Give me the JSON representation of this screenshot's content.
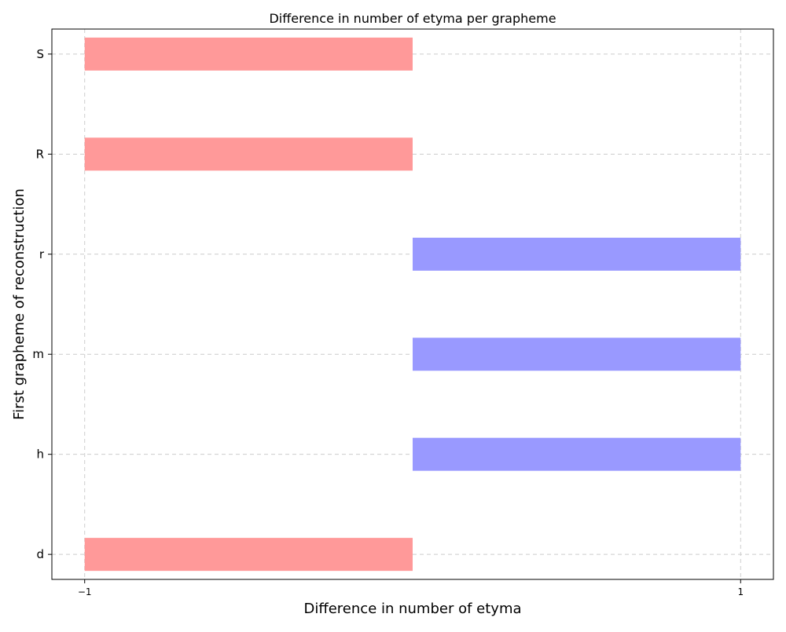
{
  "chart_data": {
    "type": "bar",
    "orientation": "horizontal",
    "title": "Difference in number of etyma per grapheme",
    "xlabel": "Difference in number of etyma",
    "ylabel": "First grapheme of reconstruction",
    "categories": [
      "d",
      "h",
      "m",
      "r",
      "R",
      "S"
    ],
    "values": [
      -1,
      1,
      1,
      1,
      -1,
      -1
    ],
    "bar_colors": [
      "#ff9999",
      "#9999ff",
      "#9999ff",
      "#9999ff",
      "#ff9999",
      "#ff9999"
    ],
    "x_ticks": [
      -1,
      1
    ],
    "x_tick_labels": [
      "−1",
      "1"
    ],
    "xlim": [
      -1.1,
      1.1
    ],
    "grid": true
  }
}
